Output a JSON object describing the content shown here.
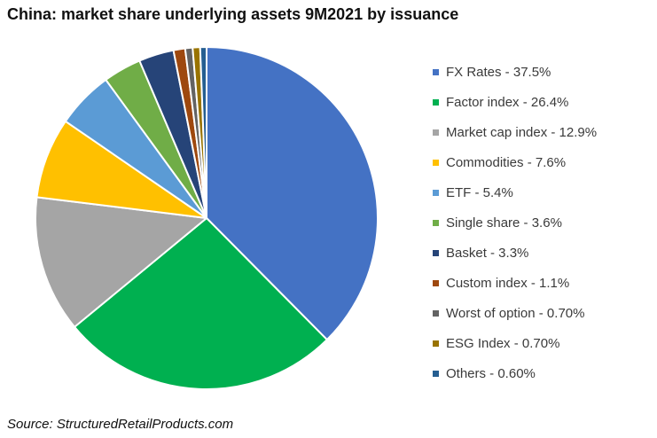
{
  "header": {
    "title": "China: market share underlying assets 9M2021 by issuance"
  },
  "source": {
    "text": "Source: StructuredRetailProducts.com"
  },
  "chart_data": {
    "type": "pie",
    "title": "China: market share underlying assets 9M2021 by issuance",
    "legend_position": "right",
    "slices": [
      {
        "label": "FX Rates - 37.5%",
        "category": "FX Rates",
        "value": 37.5,
        "color": "#4472C4"
      },
      {
        "label": "Factor index - 26.4%",
        "category": "Factor index",
        "value": 26.4,
        "color": "#00B050"
      },
      {
        "label": "Market cap index - 12.9%",
        "category": "Market cap index",
        "value": 12.9,
        "color": "#A5A5A5"
      },
      {
        "label": "Commodities - 7.6%",
        "category": "Commodities",
        "value": 7.6,
        "color": "#FFC000"
      },
      {
        "label": "ETF - 5.4%",
        "category": "ETF",
        "value": 5.4,
        "color": "#5B9BD5"
      },
      {
        "label": "Single share - 3.6%",
        "category": "Single share",
        "value": 3.6,
        "color": "#70AD47"
      },
      {
        "label": "Basket - 3.3%",
        "category": "Basket",
        "value": 3.3,
        "color": "#264478"
      },
      {
        "label": "Custom index - 1.1%",
        "category": "Custom index",
        "value": 1.1,
        "color": "#9E480E"
      },
      {
        "label": "Worst of option - 0.70%",
        "category": "Worst of option",
        "value": 0.7,
        "color": "#636363"
      },
      {
        "label": "ESG Index - 0.70%",
        "category": "ESG Index",
        "value": 0.7,
        "color": "#997300"
      },
      {
        "label": "Others - 0.60%",
        "category": "Others",
        "value": 0.6,
        "color": "#255E91"
      }
    ]
  }
}
